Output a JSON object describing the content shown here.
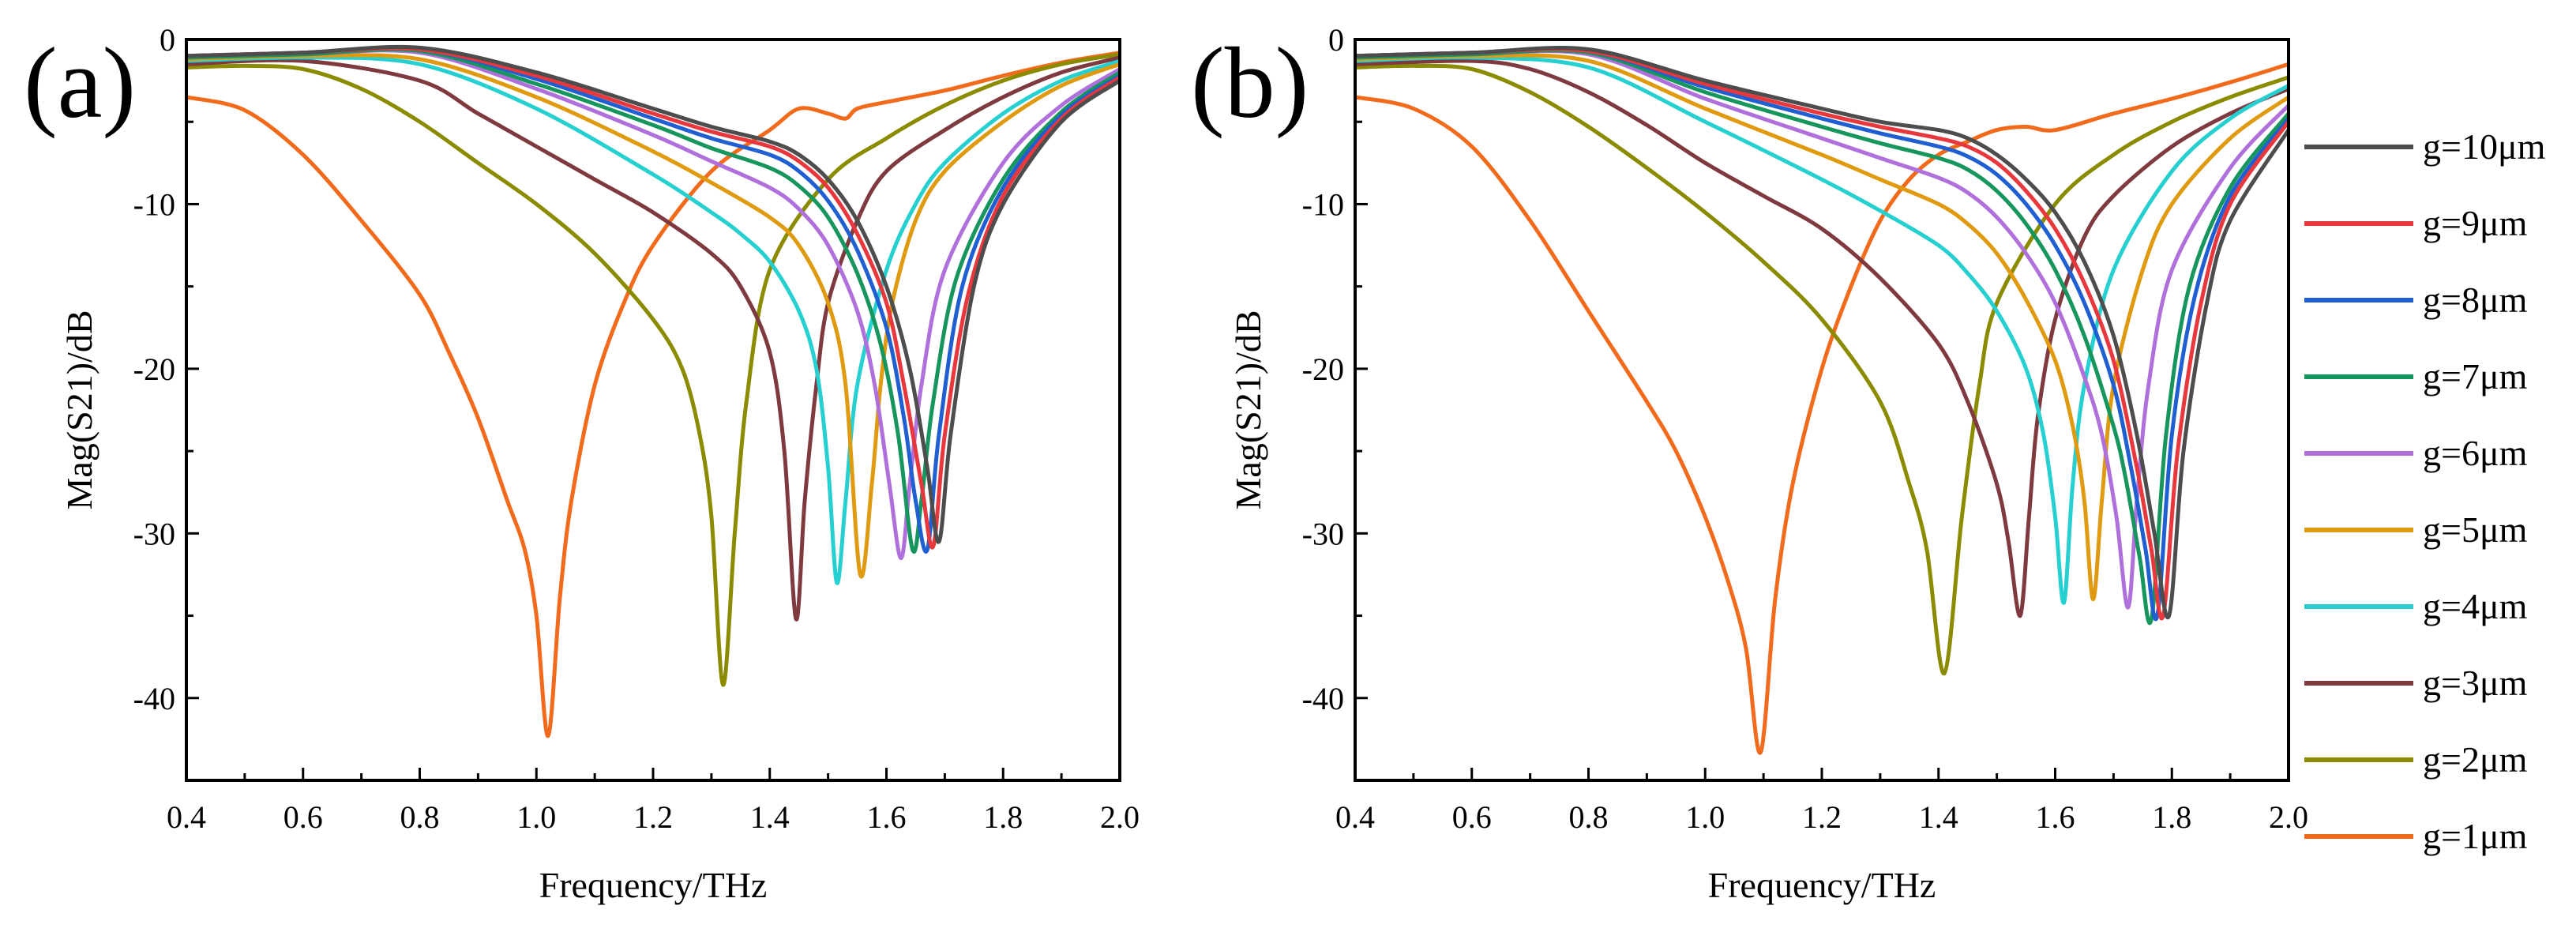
{
  "chart_data": [
    {
      "type": "line",
      "panel_label": "(a)",
      "xlabel": "Frequency/THz",
      "ylabel": "Mag(S21)/dB",
      "xlim": [
        0.4,
        2.0
      ],
      "ylim": [
        -45,
        0
      ],
      "xticks": [
        0.4,
        0.6,
        0.8,
        1.0,
        1.2,
        1.4,
        1.6,
        1.8,
        2.0
      ],
      "xtick_labels": [
        "0.4",
        "0.6",
        "0.8",
        "1.0",
        "1.2",
        "1.4",
        "1.6",
        "1.8",
        "2.0"
      ],
      "yticks": [
        0,
        -10,
        -20,
        -30,
        -40
      ],
      "ytick_labels": [
        "0",
        "-10",
        "-20",
        "-30",
        "-40"
      ],
      "series": [
        {
          "name": "g=10μm",
          "color": "#4d4d4d",
          "x": [
            0.4,
            0.6,
            0.8,
            1.0,
            1.2,
            1.3,
            1.4,
            1.45,
            1.5,
            1.55,
            1.6,
            1.64,
            1.67,
            1.69,
            1.71,
            1.75,
            1.8,
            1.9,
            2.0
          ],
          "y": [
            -1.0,
            -0.8,
            -0.5,
            -2.0,
            -4.2,
            -5.3,
            -6.2,
            -7.0,
            -8.5,
            -11.0,
            -15.0,
            -20.0,
            -26.0,
            -30.5,
            -24.0,
            -15.0,
            -10.0,
            -5.0,
            -2.5
          ]
        },
        {
          "name": "g=9μm",
          "color": "#e8383d",
          "x": [
            0.4,
            0.6,
            0.8,
            1.0,
            1.2,
            1.3,
            1.4,
            1.45,
            1.5,
            1.55,
            1.6,
            1.63,
            1.66,
            1.68,
            1.7,
            1.74,
            1.8,
            1.9,
            2.0
          ],
          "y": [
            -1.0,
            -0.8,
            -0.6,
            -2.2,
            -4.5,
            -5.6,
            -6.5,
            -7.4,
            -9.0,
            -11.8,
            -16.0,
            -21.0,
            -27.0,
            -30.8,
            -24.0,
            -15.5,
            -9.5,
            -4.8,
            -2.3
          ]
        },
        {
          "name": "g=8μm",
          "color": "#1f5fd1",
          "x": [
            0.4,
            0.6,
            0.8,
            1.0,
            1.2,
            1.3,
            1.4,
            1.45,
            1.5,
            1.55,
            1.6,
            1.63,
            1.65,
            1.67,
            1.69,
            1.73,
            1.8,
            1.9,
            2.0
          ],
          "y": [
            -1.0,
            -0.8,
            -0.6,
            -2.4,
            -4.8,
            -6.0,
            -7.0,
            -8.0,
            -9.8,
            -12.8,
            -17.5,
            -23.0,
            -28.0,
            -31.0,
            -24.0,
            -15.0,
            -9.0,
            -4.6,
            -2.2
          ]
        },
        {
          "name": "g=7μm",
          "color": "#16955c",
          "x": [
            0.4,
            0.6,
            0.8,
            1.0,
            1.2,
            1.3,
            1.4,
            1.45,
            1.5,
            1.55,
            1.59,
            1.62,
            1.645,
            1.66,
            1.68,
            1.72,
            1.8,
            1.9,
            2.0
          ],
          "y": [
            -1.1,
            -0.9,
            -0.7,
            -2.7,
            -5.2,
            -6.6,
            -7.8,
            -8.9,
            -10.8,
            -14.2,
            -18.5,
            -24.0,
            -31.0,
            -28.0,
            -22.0,
            -14.5,
            -8.5,
            -4.4,
            -2.0
          ]
        },
        {
          "name": "g=6μm",
          "color": "#b070dc",
          "x": [
            0.4,
            0.6,
            0.8,
            1.0,
            1.2,
            1.3,
            1.4,
            1.45,
            1.5,
            1.55,
            1.58,
            1.605,
            1.625,
            1.64,
            1.66,
            1.7,
            1.8,
            1.9,
            2.0
          ],
          "y": [
            -1.1,
            -0.9,
            -0.8,
            -3.0,
            -5.8,
            -7.4,
            -9.0,
            -10.3,
            -12.5,
            -16.5,
            -21.0,
            -27.0,
            -31.5,
            -27.0,
            -21.0,
            -14.0,
            -7.5,
            -4.0,
            -1.8
          ]
        },
        {
          "name": "g=5μm",
          "color": "#e09a10",
          "x": [
            0.4,
            0.6,
            0.8,
            1.0,
            1.2,
            1.3,
            1.4,
            1.45,
            1.5,
            1.53,
            1.555,
            1.575,
            1.59,
            1.61,
            1.65,
            1.7,
            1.8,
            1.9,
            2.0
          ],
          "y": [
            -1.2,
            -1.0,
            -1.2,
            -3.5,
            -6.8,
            -8.7,
            -10.8,
            -12.5,
            -16.0,
            -21.0,
            -32.5,
            -27.0,
            -21.0,
            -16.0,
            -11.0,
            -8.0,
            -5.0,
            -2.8,
            -1.5
          ]
        },
        {
          "name": "g=4μm",
          "color": "#26cfd0",
          "x": [
            0.4,
            0.6,
            0.8,
            1.0,
            1.2,
            1.3,
            1.35,
            1.4,
            1.45,
            1.48,
            1.5,
            1.515,
            1.53,
            1.55,
            1.6,
            1.65,
            1.7,
            1.8,
            1.9,
            2.0
          ],
          "y": [
            -1.3,
            -1.1,
            -1.5,
            -4.2,
            -8.2,
            -10.5,
            -11.8,
            -13.5,
            -16.5,
            -20.0,
            -26.0,
            -33.0,
            -28.0,
            -21.0,
            -14.0,
            -10.0,
            -7.5,
            -4.5,
            -2.5,
            -1.3
          ]
        },
        {
          "name": "g=3μm",
          "color": "#7e3a3e",
          "x": [
            0.4,
            0.6,
            0.8,
            0.9,
            1.0,
            1.1,
            1.2,
            1.3,
            1.35,
            1.4,
            1.425,
            1.445,
            1.46,
            1.48,
            1.5,
            1.55,
            1.6,
            1.7,
            1.8,
            1.9,
            2.0
          ],
          "y": [
            -1.5,
            -1.3,
            -2.5,
            -4.5,
            -6.5,
            -8.5,
            -10.5,
            -13.0,
            -15.0,
            -19.0,
            -25.0,
            -35.2,
            -28.0,
            -21.0,
            -16.0,
            -11.0,
            -8.0,
            -5.5,
            -3.5,
            -2.0,
            -1.1
          ]
        },
        {
          "name": "g=2μm",
          "color": "#8b8b00",
          "x": [
            0.4,
            0.5,
            0.6,
            0.7,
            0.8,
            0.9,
            1.0,
            1.1,
            1.2,
            1.25,
            1.28,
            1.3,
            1.32,
            1.34,
            1.36,
            1.4,
            1.5,
            1.6,
            1.7,
            1.8,
            1.9,
            2.0
          ],
          "y": [
            -1.7,
            -1.6,
            -1.8,
            -3.0,
            -5.0,
            -7.5,
            -10.0,
            -13.0,
            -17.0,
            -20.0,
            -24.0,
            -29.0,
            -39.2,
            -30.0,
            -22.0,
            -14.0,
            -8.5,
            -6.0,
            -4.0,
            -2.5,
            -1.5,
            -0.9
          ]
        },
        {
          "name": "g=1μm",
          "color": "#f26a1b",
          "x": [
            0.4,
            0.5,
            0.6,
            0.7,
            0.8,
            0.85,
            0.9,
            0.95,
            0.98,
            1.0,
            1.02,
            1.04,
            1.06,
            1.1,
            1.15,
            1.2,
            1.3,
            1.4,
            1.45,
            1.5,
            1.53,
            1.55,
            1.6,
            1.7,
            1.8,
            1.9,
            2.0
          ],
          "y": [
            -3.5,
            -4.3,
            -7.0,
            -11.0,
            -15.5,
            -19.0,
            -23.0,
            -28.0,
            -31.0,
            -35.0,
            -42.3,
            -34.0,
            -28.0,
            -21.0,
            -16.0,
            -12.5,
            -8.0,
            -5.5,
            -4.2,
            -4.5,
            -4.8,
            -4.2,
            -3.8,
            -3.1,
            -2.2,
            -1.4,
            -0.8
          ]
        }
      ]
    },
    {
      "type": "line",
      "panel_label": "(b)",
      "xlabel": "Frequency/THz",
      "ylabel": "Mag(S21)/dB",
      "xlim": [
        0.4,
        2.0
      ],
      "ylim": [
        -45,
        0
      ],
      "xticks": [
        0.4,
        0.6,
        0.8,
        1.0,
        1.2,
        1.4,
        1.6,
        1.8,
        2.0
      ],
      "xtick_labels": [
        "0.4",
        "0.6",
        "0.8",
        "1.0",
        "1.2",
        "1.4",
        "1.6",
        "1.8",
        "2.0"
      ],
      "yticks": [
        0,
        -10,
        -20,
        -30,
        -40
      ],
      "ytick_labels": [
        "0",
        "-10",
        "-20",
        "-30",
        "-40"
      ],
      "series": [
        {
          "name": "g=10μm",
          "color": "#4d4d4d",
          "x": [
            0.4,
            0.6,
            0.8,
            1.0,
            1.2,
            1.3,
            1.4,
            1.45,
            1.5,
            1.55,
            1.6,
            1.65,
            1.7,
            1.74,
            1.77,
            1.795,
            1.82,
            1.86,
            1.9,
            2.0
          ],
          "y": [
            -1.0,
            -0.8,
            -0.6,
            -2.5,
            -4.2,
            -5.0,
            -5.5,
            -6.0,
            -7.0,
            -8.5,
            -10.5,
            -13.5,
            -18.0,
            -24.0,
            -30.0,
            -35.0,
            -25.0,
            -16.0,
            -11.0,
            -5.5
          ]
        },
        {
          "name": "g=9μm",
          "color": "#e8383d",
          "x": [
            0.4,
            0.6,
            0.8,
            1.0,
            1.2,
            1.3,
            1.4,
            1.45,
            1.5,
            1.55,
            1.6,
            1.65,
            1.7,
            1.74,
            1.765,
            1.785,
            1.81,
            1.85,
            1.9,
            2.0
          ],
          "y": [
            -1.0,
            -0.8,
            -0.7,
            -2.7,
            -4.5,
            -5.3,
            -6.0,
            -6.5,
            -7.5,
            -9.2,
            -11.5,
            -14.8,
            -19.5,
            -26.0,
            -31.0,
            -35.0,
            -25.0,
            -16.0,
            -10.0,
            -5.0
          ]
        },
        {
          "name": "g=8μm",
          "color": "#1f5fd1",
          "x": [
            0.4,
            0.6,
            0.8,
            1.0,
            1.2,
            1.3,
            1.4,
            1.45,
            1.5,
            1.55,
            1.6,
            1.65,
            1.7,
            1.73,
            1.755,
            1.775,
            1.8,
            1.84,
            1.9,
            2.0
          ],
          "y": [
            -1.0,
            -0.8,
            -0.7,
            -2.9,
            -4.8,
            -5.7,
            -6.5,
            -7.1,
            -8.2,
            -10.0,
            -12.5,
            -16.0,
            -21.0,
            -26.0,
            -31.0,
            -35.0,
            -24.0,
            -15.5,
            -9.5,
            -4.8
          ]
        },
        {
          "name": "g=7μm",
          "color": "#16955c",
          "x": [
            0.4,
            0.6,
            0.8,
            1.0,
            1.2,
            1.3,
            1.4,
            1.45,
            1.5,
            1.55,
            1.6,
            1.65,
            1.7,
            1.72,
            1.745,
            1.765,
            1.79,
            1.83,
            1.9,
            2.0
          ],
          "y": [
            -1.1,
            -0.9,
            -0.8,
            -3.2,
            -5.3,
            -6.3,
            -7.2,
            -7.9,
            -9.2,
            -11.2,
            -14.0,
            -18.0,
            -23.5,
            -26.5,
            -31.5,
            -35.2,
            -24.0,
            -15.0,
            -9.0,
            -4.5
          ]
        },
        {
          "name": "g=6μm",
          "color": "#b070dc",
          "x": [
            0.4,
            0.6,
            0.8,
            1.0,
            1.2,
            1.3,
            1.4,
            1.45,
            1.5,
            1.55,
            1.6,
            1.65,
            1.68,
            1.705,
            1.725,
            1.74,
            1.76,
            1.8,
            1.9,
            2.0
          ],
          "y": [
            -1.1,
            -0.9,
            -0.9,
            -3.6,
            -6.0,
            -7.2,
            -8.4,
            -9.3,
            -10.8,
            -13.0,
            -16.0,
            -20.5,
            -24.0,
            -29.0,
            -34.5,
            -28.0,
            -21.0,
            -14.0,
            -7.8,
            -4.0
          ]
        },
        {
          "name": "g=5μm",
          "color": "#e09a10",
          "x": [
            0.4,
            0.6,
            0.8,
            1.0,
            1.2,
            1.3,
            1.4,
            1.45,
            1.5,
            1.55,
            1.6,
            1.63,
            1.65,
            1.665,
            1.68,
            1.7,
            1.75,
            1.8,
            1.9,
            2.0
          ],
          "y": [
            -1.2,
            -1.0,
            -1.3,
            -4.2,
            -7.0,
            -8.5,
            -10.0,
            -11.2,
            -13.0,
            -15.8,
            -19.5,
            -23.5,
            -28.0,
            -34.0,
            -28.0,
            -21.0,
            -14.0,
            -10.0,
            -6.0,
            -3.5
          ]
        },
        {
          "name": "g=4μm",
          "color": "#26cfd0",
          "x": [
            0.4,
            0.6,
            0.8,
            1.0,
            1.2,
            1.3,
            1.4,
            1.45,
            1.5,
            1.55,
            1.58,
            1.6,
            1.615,
            1.63,
            1.65,
            1.7,
            1.8,
            1.9,
            2.0
          ],
          "y": [
            -1.3,
            -1.1,
            -1.7,
            -5.0,
            -8.5,
            -10.4,
            -12.5,
            -14.2,
            -16.5,
            -20.0,
            -24.0,
            -29.0,
            -34.2,
            -27.0,
            -21.0,
            -14.0,
            -8.0,
            -4.8,
            -2.8
          ]
        },
        {
          "name": "g=3μm",
          "color": "#7e3a3e",
          "x": [
            0.4,
            0.6,
            0.7,
            0.8,
            0.9,
            1.0,
            1.1,
            1.2,
            1.3,
            1.4,
            1.45,
            1.5,
            1.52,
            1.54,
            1.555,
            1.57,
            1.6,
            1.65,
            1.7,
            1.8,
            1.9,
            2.0
          ],
          "y": [
            -1.5,
            -1.3,
            -1.8,
            -3.2,
            -5.2,
            -7.5,
            -9.5,
            -11.5,
            -14.5,
            -18.5,
            -22.0,
            -27.0,
            -30.5,
            -35.0,
            -29.0,
            -23.0,
            -17.0,
            -12.0,
            -9.5,
            -6.5,
            -4.5,
            -3.0
          ]
        },
        {
          "name": "g=2μm",
          "color": "#8b8b00",
          "x": [
            0.4,
            0.5,
            0.6,
            0.7,
            0.8,
            0.9,
            1.0,
            1.1,
            1.2,
            1.3,
            1.35,
            1.38,
            1.41,
            1.44,
            1.47,
            1.5,
            1.6,
            1.7,
            1.8,
            1.9,
            2.0
          ],
          "y": [
            -1.7,
            -1.6,
            -1.8,
            -3.2,
            -5.3,
            -7.8,
            -10.5,
            -13.5,
            -17.0,
            -22.0,
            -27.0,
            -31.0,
            -38.5,
            -29.0,
            -21.0,
            -16.0,
            -10.0,
            -7.0,
            -5.0,
            -3.5,
            -2.3
          ]
        },
        {
          "name": "g=1μm",
          "color": "#f26a1b",
          "x": [
            0.4,
            0.5,
            0.6,
            0.7,
            0.8,
            0.9,
            0.95,
            1.0,
            1.04,
            1.07,
            1.095,
            1.12,
            1.15,
            1.2,
            1.25,
            1.3,
            1.35,
            1.4,
            1.45,
            1.5,
            1.55,
            1.6,
            1.7,
            1.8,
            1.9,
            2.0
          ],
          "y": [
            -3.5,
            -4.2,
            -6.5,
            -11.0,
            -16.5,
            -22.0,
            -25.0,
            -29.0,
            -33.0,
            -37.0,
            -43.3,
            -34.0,
            -27.0,
            -20.0,
            -15.0,
            -11.0,
            -8.5,
            -7.0,
            -6.2,
            -5.5,
            -5.3,
            -5.5,
            -4.5,
            -3.6,
            -2.6,
            -1.5
          ]
        }
      ]
    }
  ]
}
